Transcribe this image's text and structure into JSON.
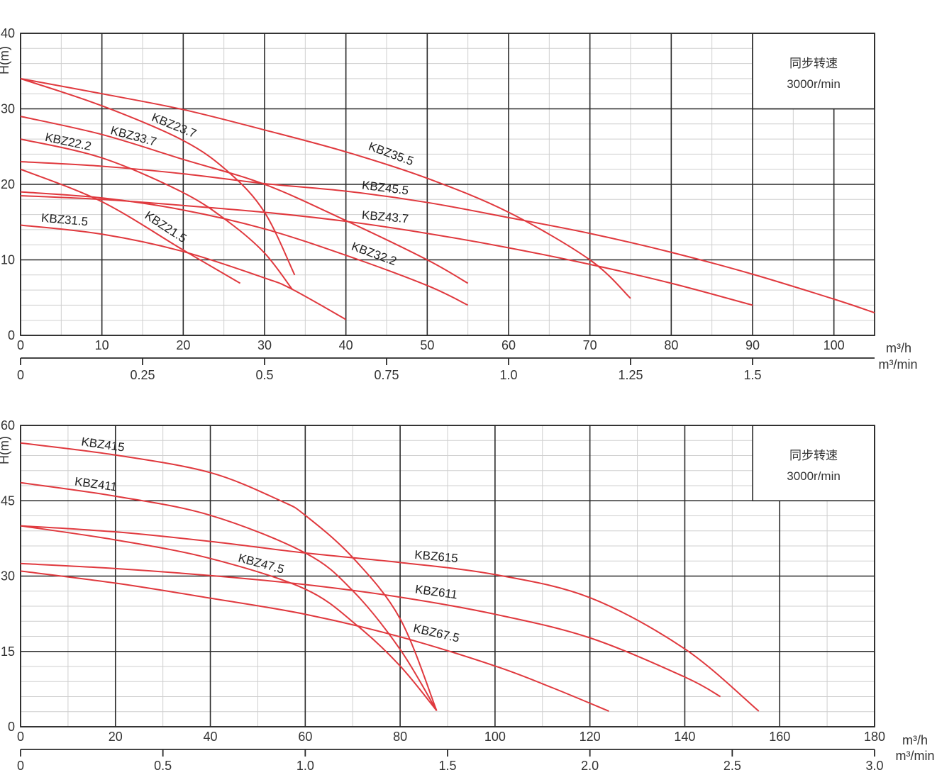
{
  "chart_data": [
    {
      "type": "line",
      "ylabel": "H(m)",
      "xlabel": "m³/h",
      "x2label": "m³/min",
      "xlim": [
        0,
        105
      ],
      "ylim": [
        0,
        40
      ],
      "xticks": [
        0,
        10,
        20,
        30,
        40,
        50,
        60,
        70,
        80,
        90,
        100
      ],
      "yticks": [
        0,
        10,
        20,
        30,
        40
      ],
      "x2ticks": [
        "0",
        "0.25",
        "0.5",
        "0.75",
        "1.0",
        "1.25",
        "1.5"
      ],
      "x2_per_x": 60,
      "grid": true,
      "line_color": "#e0393e",
      "info_box": {
        "line1": "同步转速",
        "line2": "3000r/min"
      },
      "series": [
        {
          "name": "KBZ23.7",
          "points": [
            [
              0,
              34
            ],
            [
              10,
              30.4
            ],
            [
              20,
              25.8
            ],
            [
              25.6,
              21.6
            ],
            [
              30,
              16.3
            ],
            [
              33.7,
              8
            ]
          ]
        },
        {
          "name": "KBZ33.7",
          "points": [
            [
              0,
              29
            ],
            [
              10,
              26.6
            ],
            [
              20,
              23.3
            ],
            [
              30,
              20
            ],
            [
              40,
              15.2
            ],
            [
              50,
              10
            ],
            [
              55,
              6.9
            ]
          ]
        },
        {
          "name": "KBZ22.2",
          "points": [
            [
              0,
              26
            ],
            [
              10,
              23.5
            ],
            [
              20,
              18.9
            ],
            [
              25.6,
              15
            ],
            [
              30,
              10.9
            ],
            [
              33.4,
              6.1
            ]
          ]
        },
        {
          "name": "KBZ35.5",
          "points": [
            [
              0,
              34
            ],
            [
              10,
              32
            ],
            [
              20,
              29.9
            ],
            [
              30,
              27.2
            ],
            [
              40,
              24.3
            ],
            [
              50,
              20.8
            ],
            [
              60,
              16.3
            ],
            [
              70,
              10
            ],
            [
              75,
              4.9
            ]
          ]
        },
        {
          "name": "KBZ45.5",
          "points": [
            [
              0,
              23
            ],
            [
              10,
              22.4
            ],
            [
              20,
              21.4
            ],
            [
              30,
              20.1
            ],
            [
              40,
              19.1
            ],
            [
              50,
              17.6
            ],
            [
              60,
              15.6
            ],
            [
              70,
              13.5
            ],
            [
              80,
              11
            ],
            [
              90,
              8.1
            ],
            [
              100,
              4.8
            ],
            [
              105,
              3
            ]
          ]
        },
        {
          "name": "KBZ43.7",
          "points": [
            [
              0,
              18.5
            ],
            [
              10,
              18
            ],
            [
              20,
              17.2
            ],
            [
              30,
              16.3
            ],
            [
              40,
              15.1
            ],
            [
              50,
              13.5
            ],
            [
              60,
              11.6
            ],
            [
              70,
              9.4
            ],
            [
              80,
              6.9
            ],
            [
              90,
              4
            ]
          ]
        },
        {
          "name": "KBZ31.5",
          "points": [
            [
              0,
              14.6
            ],
            [
              10,
              13.4
            ],
            [
              20,
              11.1
            ],
            [
              30,
              7.6
            ],
            [
              33.4,
              6.1
            ],
            [
              40,
              2.1
            ]
          ]
        },
        {
          "name": "KBZ21.5",
          "points": [
            [
              0,
              22
            ],
            [
              10,
              17.7
            ],
            [
              20,
              11.3
            ],
            [
              27,
              6.9
            ]
          ]
        },
        {
          "name": "KBZ32.2",
          "points": [
            [
              0,
              19
            ],
            [
              10,
              18.2
            ],
            [
              20,
              16.6
            ],
            [
              30,
              14.1
            ],
            [
              40,
              10.6
            ],
            [
              50,
              6.6
            ],
            [
              55,
              4
            ]
          ]
        }
      ]
    },
    {
      "type": "line",
      "ylabel": "H(m)",
      "xlabel": "m³/h",
      "x2label": "m³/min",
      "xlim": [
        0,
        180
      ],
      "ylim": [
        0,
        60
      ],
      "xticks": [
        0,
        20,
        40,
        60,
        80,
        100,
        120,
        140,
        160,
        180
      ],
      "yticks": [
        0,
        15,
        30,
        45,
        60
      ],
      "x2ticks": [
        "0",
        "0.5",
        "1.0",
        "1.5",
        "2.0",
        "2.5",
        "3.0"
      ],
      "x2_per_x": 60,
      "grid": true,
      "line_color": "#e0393e",
      "info_box": {
        "line1": "同步转速",
        "line2": "3000r/min"
      },
      "series": [
        {
          "name": "KBZ415",
          "points": [
            [
              0,
              56.5
            ],
            [
              20,
              54.1
            ],
            [
              40,
              50.6
            ],
            [
              54.8,
              45
            ],
            [
              60,
              42.1
            ],
            [
              70,
              33.7
            ],
            [
              80,
              21.5
            ],
            [
              87.7,
              3.2
            ]
          ]
        },
        {
          "name": "KBZ411",
          "points": [
            [
              0,
              48.6
            ],
            [
              20,
              45.9
            ],
            [
              40,
              42.1
            ],
            [
              60,
              34.6
            ],
            [
              70,
              27.1
            ],
            [
              80,
              15.4
            ],
            [
              87.7,
              3.2
            ]
          ]
        },
        {
          "name": "KBZ47.5",
          "points": [
            [
              0,
              40
            ],
            [
              20,
              37.2
            ],
            [
              40,
              33.5
            ],
            [
              60,
              27.4
            ],
            [
              71,
              20.1
            ],
            [
              80,
              12.1
            ],
            [
              87.7,
              3.2
            ]
          ]
        },
        {
          "name": "KBZ615",
          "points": [
            [
              0,
              40
            ],
            [
              20,
              38.8
            ],
            [
              40,
              36.9
            ],
            [
              60,
              34.6
            ],
            [
              80,
              32.7
            ],
            [
              100,
              30.3
            ],
            [
              120,
              25.7
            ],
            [
              140,
              15.5
            ],
            [
              155.6,
              3.1
            ]
          ]
        },
        {
          "name": "KBZ611",
          "points": [
            [
              0,
              32.5
            ],
            [
              20,
              31.5
            ],
            [
              40,
              30.1
            ],
            [
              60,
              28.3
            ],
            [
              80,
              25.8
            ],
            [
              100,
              22.4
            ],
            [
              120,
              17.7
            ],
            [
              140,
              9.9
            ],
            [
              147.5,
              6
            ]
          ]
        },
        {
          "name": "KBZ67.5",
          "points": [
            [
              0,
              31
            ],
            [
              20,
              28.6
            ],
            [
              40,
              25.6
            ],
            [
              60,
              22.4
            ],
            [
              80,
              17.9
            ],
            [
              100,
              12.1
            ],
            [
              112,
              7.8
            ],
            [
              124,
              3.1
            ]
          ]
        }
      ]
    }
  ]
}
